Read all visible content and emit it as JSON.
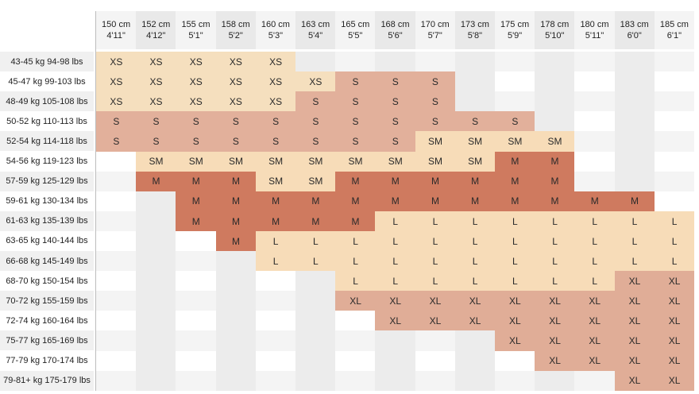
{
  "columns": [
    {
      "cm": "150 cm",
      "ft": "4'11\""
    },
    {
      "cm": "152 cm",
      "ft": "4'12\""
    },
    {
      "cm": "155 cm",
      "ft": "5'1\""
    },
    {
      "cm": "158 cm",
      "ft": "5'2\""
    },
    {
      "cm": "160 cm",
      "ft": "5'3\""
    },
    {
      "cm": "163 cm",
      "ft": "5'4\""
    },
    {
      "cm": "165 cm",
      "ft": "5'5\""
    },
    {
      "cm": "168 cm",
      "ft": "5'6\""
    },
    {
      "cm": "170 cm",
      "ft": "5'7\""
    },
    {
      "cm": "173 cm",
      "ft": "5'8\""
    },
    {
      "cm": "175 cm",
      "ft": "5'9\""
    },
    {
      "cm": "178 cm",
      "ft": "5'10\""
    },
    {
      "cm": "180 cm",
      "ft": "5'11\""
    },
    {
      "cm": "183 cm",
      "ft": "6'0\""
    },
    {
      "cm": "185 cm",
      "ft": "6'1\""
    }
  ],
  "rows": [
    {
      "label": "43-45 kg 94-98 lbs",
      "cells": [
        "XS",
        "XS",
        "XS",
        "XS",
        "XS",
        "",
        "",
        "",
        "",
        "",
        "",
        "",
        "",
        "",
        ""
      ]
    },
    {
      "label": "45-47 kg 99-103 lbs",
      "cells": [
        "XS",
        "XS",
        "XS",
        "XS",
        "XS",
        "XS",
        "S",
        "S",
        "S",
        "",
        "",
        "",
        "",
        "",
        ""
      ]
    },
    {
      "label": "48-49 kg 105-108 lbs",
      "cells": [
        "XS",
        "XS",
        "XS",
        "XS",
        "XS",
        "S",
        "S",
        "S",
        "S",
        "",
        "",
        "",
        "",
        "",
        ""
      ]
    },
    {
      "label": "50-52 kg 110-113 lbs",
      "cells": [
        "S",
        "S",
        "S",
        "S",
        "S",
        "S",
        "S",
        "S",
        "S",
        "S",
        "S",
        "",
        "",
        "",
        ""
      ]
    },
    {
      "label": "52-54 kg 114-118 lbs",
      "cells": [
        "S",
        "S",
        "S",
        "S",
        "S",
        "S",
        "S",
        "S",
        "SM",
        "SM",
        "SM",
        "SM",
        "",
        "",
        ""
      ]
    },
    {
      "label": "54-56 kg 119-123 lbs",
      "cells": [
        "",
        "SM",
        "SM",
        "SM",
        "SM",
        "SM",
        "SM",
        "SM",
        "SM",
        "SM",
        "M",
        "M",
        "",
        "",
        ""
      ]
    },
    {
      "label": "57-59 kg 125-129 lbs",
      "cells": [
        "",
        "M",
        "M",
        "M",
        "SM",
        "SM",
        "M",
        "M",
        "M",
        "M",
        "M",
        "M",
        "",
        "",
        ""
      ]
    },
    {
      "label": "59-61 kg 130-134 lbs",
      "cells": [
        "",
        "",
        "M",
        "M",
        "M",
        "M",
        "M",
        "M",
        "M",
        "M",
        "M",
        "M",
        "M",
        "M",
        ""
      ]
    },
    {
      "label": "61-63 kg 135-139 lbs",
      "cells": [
        "",
        "",
        "M",
        "M",
        "M",
        "M",
        "M",
        "L",
        "L",
        "L",
        "L",
        "L",
        "L",
        "L",
        "L"
      ]
    },
    {
      "label": "63-65 kg 140-144 lbs",
      "cells": [
        "",
        "",
        "",
        "M",
        "L",
        "L",
        "L",
        "L",
        "L",
        "L",
        "L",
        "L",
        "L",
        "L",
        "L"
      ]
    },
    {
      "label": "66-68 kg 145-149 lbs",
      "cells": [
        "",
        "",
        "",
        "",
        "L",
        "L",
        "L",
        "L",
        "L",
        "L",
        "L",
        "L",
        "L",
        "L",
        "L"
      ]
    },
    {
      "label": "68-70 kg 150-154 lbs",
      "cells": [
        "",
        "",
        "",
        "",
        "",
        "",
        "L",
        "L",
        "L",
        "L",
        "L",
        "L",
        "L",
        "XL",
        "XL"
      ]
    },
    {
      "label": "70-72 kg 155-159 lbs",
      "cells": [
        "",
        "",
        "",
        "",
        "",
        "",
        "XL",
        "XL",
        "XL",
        "XL",
        "XL",
        "XL",
        "XL",
        "XL",
        "XL"
      ]
    },
    {
      "label": "72-74 kg 160-164 lbs",
      "cells": [
        "",
        "",
        "",
        "",
        "",
        "",
        "",
        "XL",
        "XL",
        "XL",
        "XL",
        "XL",
        "XL",
        "XL",
        "XL"
      ]
    },
    {
      "label": "75-77 kg 165-169 lbs",
      "cells": [
        "",
        "",
        "",
        "",
        "",
        "",
        "",
        "",
        "",
        "",
        "XL",
        "XL",
        "XL",
        "XL",
        "XL"
      ]
    },
    {
      "label": "77-79 kg 170-174 lbs",
      "cells": [
        "",
        "",
        "",
        "",
        "",
        "",
        "",
        "",
        "",
        "",
        "",
        "XL",
        "XL",
        "XL",
        "XL"
      ]
    },
    {
      "label": "79-81+ kg 175-179 lbs",
      "cells": [
        "",
        "",
        "",
        "",
        "",
        "",
        "",
        "",
        "",
        "",
        "",
        "",
        "",
        "XL",
        "XL"
      ]
    }
  ],
  "colors": {
    "XS": "#f5dfbe",
    "S": "#e2b09b",
    "SM": "#f7dcb8",
    "M": "#cf7a5f",
    "L": "#f7dcb8",
    "XL": "#e0ad97",
    "empty_light": "#ffffff",
    "empty_dark": "#ececec",
    "row_alt": "#f0f0f0"
  }
}
